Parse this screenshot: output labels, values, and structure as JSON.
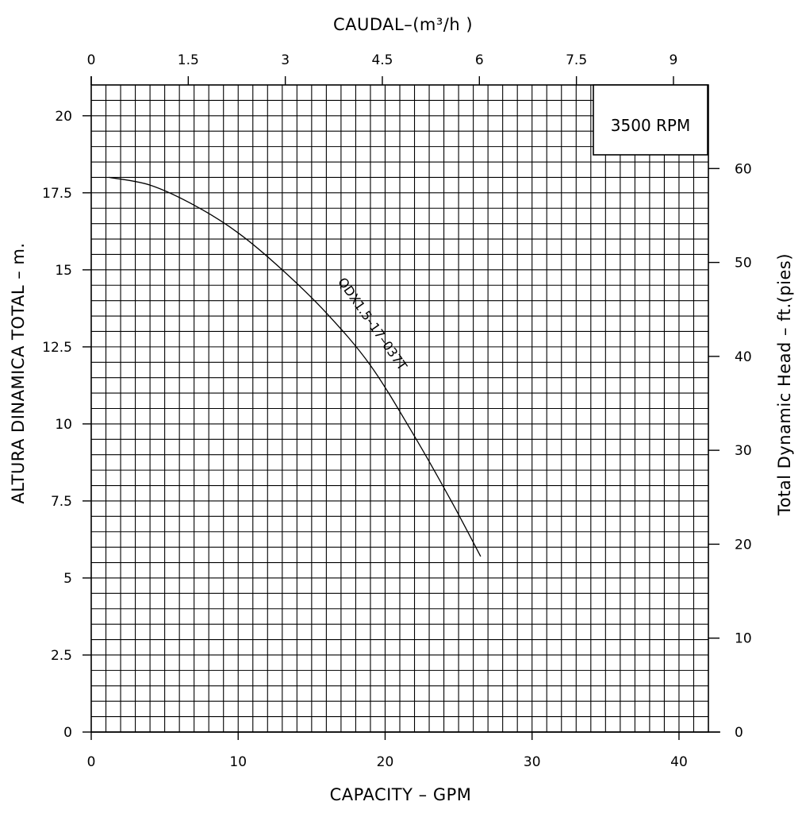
{
  "chart_data": {
    "type": "line",
    "title": "",
    "badge": "3500 RPM",
    "axes": {
      "bottom": {
        "label": "CAPACITY  –  GPM",
        "range": [
          0,
          42
        ],
        "ticks": [
          0,
          10,
          20,
          30,
          40
        ],
        "tick_labels": [
          "0",
          "10",
          "20",
          "30",
          "40"
        ]
      },
      "top": {
        "label": "CAUDAL–(m³/h )",
        "range": [
          0,
          9.54
        ],
        "ticks": [
          0,
          1.5,
          3,
          4.5,
          6,
          7.5,
          9
        ],
        "tick_labels": [
          "0",
          "1.5",
          "3",
          "4.5",
          "6",
          "7.5",
          "9"
        ]
      },
      "left": {
        "label": "ALTURA DINAMICA TOTAL  –  m.",
        "range": [
          0,
          21
        ],
        "ticks": [
          0,
          2.5,
          5,
          7.5,
          10,
          12.5,
          15,
          17.5,
          20
        ],
        "tick_labels": [
          "0",
          "2.5",
          "5",
          "7.5",
          "10",
          "12.5",
          "15",
          "17.5",
          "20"
        ]
      },
      "right": {
        "label": "Total Dynamic Head  –  ft.(pies)",
        "range": [
          0,
          68.9
        ],
        "ticks": [
          0,
          10,
          20,
          30,
          40,
          50,
          60
        ],
        "tick_labels": [
          "0",
          "10",
          "20",
          "30",
          "40",
          "50",
          "60"
        ]
      }
    },
    "grid": true,
    "series": [
      {
        "name": "QDX1.5–17–037T",
        "x": [
          1.2,
          4,
          7,
          10,
          13,
          16,
          19,
          22,
          24.5,
          26.5
        ],
        "y": [
          18.0,
          17.75,
          17.1,
          16.2,
          15.0,
          13.6,
          11.9,
          9.6,
          7.5,
          5.7
        ]
      }
    ]
  }
}
